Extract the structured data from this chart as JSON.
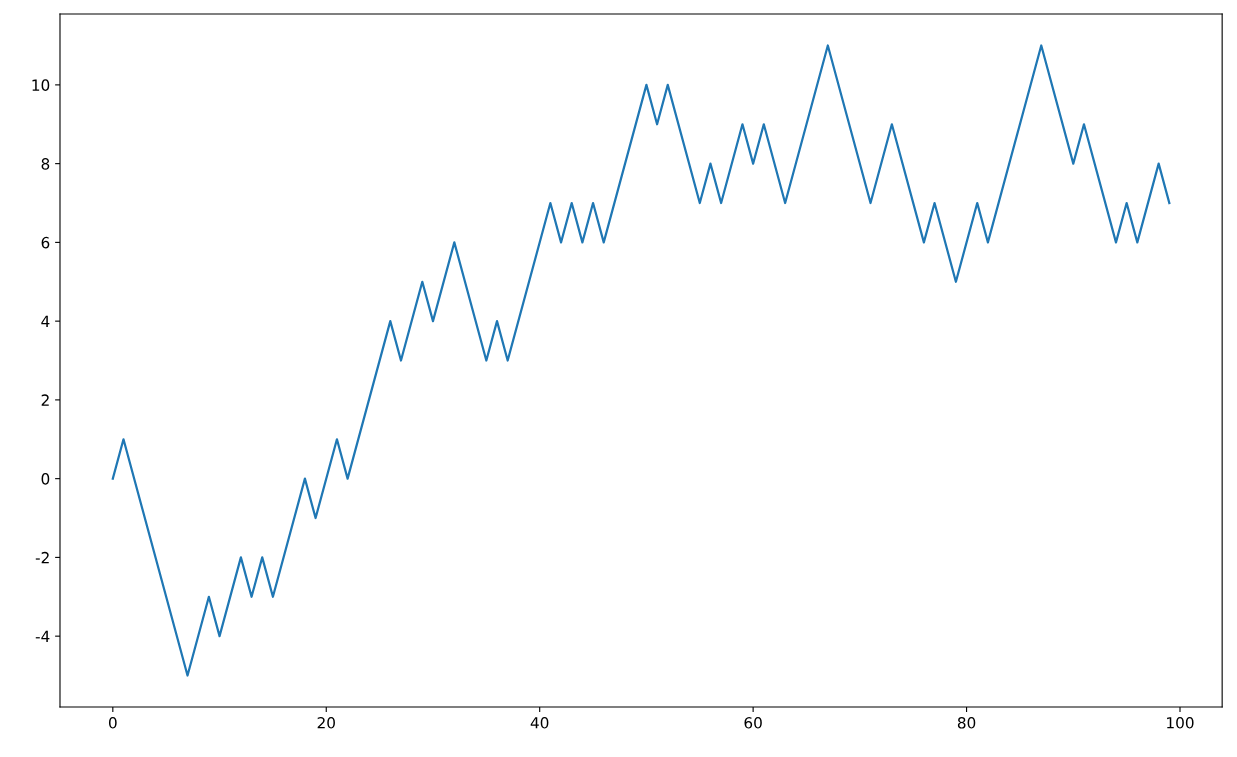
{
  "chart_data": {
    "type": "line",
    "x": [
      0,
      1,
      7,
      9,
      10,
      12,
      13,
      14,
      15,
      18,
      19,
      21,
      22,
      26,
      27,
      29,
      30,
      32,
      35,
      36,
      37,
      41,
      42,
      43,
      44,
      45,
      46,
      50,
      51,
      52,
      55,
      56,
      57,
      59,
      60,
      61,
      63,
      67,
      71,
      73,
      76,
      77,
      79,
      81,
      82,
      87,
      90,
      91,
      94,
      95,
      96,
      98,
      99
    ],
    "series": [
      {
        "color": "#1f77b4",
        "values": [
          0,
          1,
          -5,
          -3,
          -4,
          -2,
          -3,
          -2,
          -3,
          0,
          -1,
          1,
          0,
          4,
          3,
          5,
          4,
          6,
          3,
          4,
          3,
          7,
          6,
          7,
          6,
          7,
          6,
          10,
          9,
          10,
          7,
          8,
          7,
          9,
          8,
          9,
          7,
          11,
          7,
          9,
          6,
          7,
          5,
          7,
          6,
          11,
          8,
          9,
          6,
          7,
          6,
          8,
          7
        ]
      }
    ],
    "xlim": [
      -4.95,
      103.95
    ],
    "ylim": [
      -5.8,
      11.8
    ],
    "xticks": [
      0,
      20,
      40,
      60,
      80,
      100
    ],
    "yticks": [
      -4,
      -2,
      0,
      2,
      4,
      6,
      8,
      10
    ],
    "marker": "none",
    "line_style": "solid"
  }
}
